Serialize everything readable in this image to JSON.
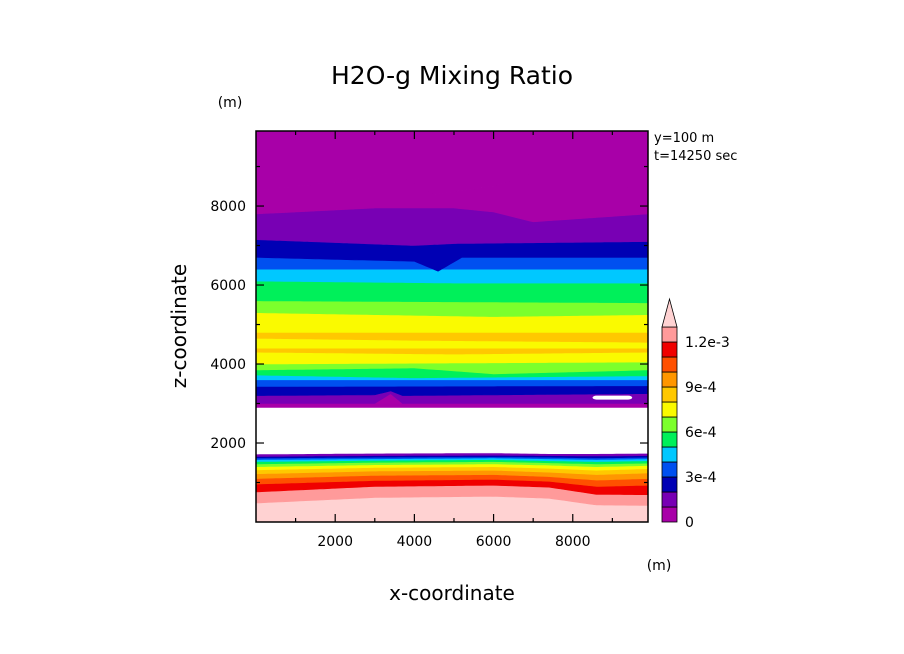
{
  "chart_data": {
    "type": "heatmap",
    "title": "H2O-g Mixing Ratio",
    "xlabel": "x-coordinate",
    "ylabel": "z-coordinate",
    "x_unit": "(m)",
    "y_unit": "(m)",
    "annotation_lines": [
      "y=100 m",
      "t=14250 sec"
    ],
    "xlim": [
      0,
      9900
    ],
    "ylim": [
      0,
      9900
    ],
    "xticks": [
      2000,
      4000,
      6000,
      8000
    ],
    "yticks": [
      2000,
      4000,
      6000,
      8000
    ],
    "xtick_labels": [
      "2000",
      "4000",
      "6000",
      "8000"
    ],
    "ytick_labels": [
      "2000",
      "4000",
      "6000",
      "8000"
    ],
    "colorbar": {
      "min": 0,
      "max": 0.0013,
      "step": 0.0001,
      "extend": "max",
      "colors": [
        "#a800a8",
        "#7800b4",
        "#0000b4",
        "#0050f0",
        "#00c8ff",
        "#00f05a",
        "#7cff2c",
        "#fafa00",
        "#ffc800",
        "#ff9600",
        "#ff5000",
        "#f00000",
        "#ff9a9a",
        "#ffd2d2"
      ],
      "extend_color": "#ffd2d2",
      "tick_values": [
        0,
        0.0003,
        0.0006,
        0.0009,
        0.0012
      ],
      "tick_labels": [
        "0",
        "3e-4",
        "6e-4",
        "9e-4",
        "1.2e-3"
      ]
    },
    "layers": [
      {
        "z_bottom": 0,
        "level_index": 13,
        "z_top_profile": [
          [
            0,
            480
          ],
          [
            3000,
            620
          ],
          [
            6000,
            650
          ],
          [
            7400,
            600
          ],
          [
            8600,
            430
          ],
          [
            9900,
            420
          ]
        ]
      },
      {
        "level_index": 12,
        "z_top_profile": [
          [
            0,
            760
          ],
          [
            3000,
            900
          ],
          [
            6000,
            930
          ],
          [
            7400,
            880
          ],
          [
            8600,
            700
          ],
          [
            9900,
            690
          ]
        ]
      },
      {
        "level_index": 11,
        "z_top_profile": [
          [
            0,
            960
          ],
          [
            3000,
            1050
          ],
          [
            6000,
            1080
          ],
          [
            7400,
            1030
          ],
          [
            8600,
            900
          ],
          [
            9900,
            930
          ]
        ]
      },
      {
        "level_index": 10,
        "z_top_profile": [
          [
            0,
            1100
          ],
          [
            3000,
            1180
          ],
          [
            6000,
            1200
          ],
          [
            7400,
            1150
          ],
          [
            8600,
            1060
          ],
          [
            9900,
            1100
          ]
        ]
      },
      {
        "level_index": 9,
        "z_top_profile": [
          [
            0,
            1220
          ],
          [
            3000,
            1290
          ],
          [
            6000,
            1310
          ],
          [
            7400,
            1260
          ],
          [
            8600,
            1200
          ],
          [
            9900,
            1240
          ]
        ]
      },
      {
        "level_index": 8,
        "z_top_profile": [
          [
            0,
            1320
          ],
          [
            3000,
            1380
          ],
          [
            6000,
            1400
          ],
          [
            7400,
            1360
          ],
          [
            8600,
            1310
          ],
          [
            9900,
            1350
          ]
        ]
      },
      {
        "level_index": 7,
        "z_top_profile": [
          [
            0,
            1400
          ],
          [
            3000,
            1450
          ],
          [
            6000,
            1470
          ],
          [
            7400,
            1440
          ],
          [
            8600,
            1400
          ],
          [
            9900,
            1430
          ]
        ]
      },
      {
        "level_index": 6,
        "z_top_profile": [
          [
            0,
            1470
          ],
          [
            3000,
            1510
          ],
          [
            6000,
            1530
          ],
          [
            7400,
            1500
          ],
          [
            8600,
            1470
          ],
          [
            9900,
            1490
          ]
        ]
      },
      {
        "level_index": 5,
        "z_top_profile": [
          [
            0,
            1530
          ],
          [
            3000,
            1560
          ],
          [
            6000,
            1580
          ],
          [
            7400,
            1550
          ],
          [
            8600,
            1530
          ],
          [
            9900,
            1550
          ]
        ]
      },
      {
        "level_index": 4,
        "z_top_profile": [
          [
            0,
            1580
          ],
          [
            3000,
            1600
          ],
          [
            6000,
            1620
          ],
          [
            7400,
            1600
          ],
          [
            8600,
            1580
          ],
          [
            9900,
            1600
          ]
        ]
      },
      {
        "level_index": 3,
        "z_top_profile": [
          [
            0,
            1620
          ],
          [
            3000,
            1640
          ],
          [
            6000,
            1650
          ],
          [
            7400,
            1640
          ],
          [
            8600,
            1620
          ],
          [
            9900,
            1640
          ]
        ]
      },
      {
        "level_index": 2,
        "z_top_profile": [
          [
            0,
            1660
          ],
          [
            3000,
            1680
          ],
          [
            6000,
            1690
          ],
          [
            7400,
            1680
          ],
          [
            8600,
            1670
          ],
          [
            9900,
            1680
          ]
        ]
      },
      {
        "level_index": 1,
        "z_top_profile": [
          [
            0,
            1720
          ],
          [
            3000,
            1740
          ],
          [
            6000,
            1750
          ],
          [
            7400,
            1730
          ],
          [
            8600,
            1730
          ],
          [
            9900,
            1740
          ]
        ]
      },
      {
        "level_index": -1,
        "z_top_profile": [
          [
            0,
            2900
          ],
          [
            9900,
            2900
          ]
        ]
      },
      {
        "level_index": 0,
        "z_top_profile": [
          [
            0,
            3000
          ],
          [
            3000,
            3000
          ],
          [
            3400,
            3250
          ],
          [
            3700,
            3000
          ],
          [
            9900,
            3000
          ]
        ]
      },
      {
        "level_index": 1,
        "z_top_profile": [
          [
            0,
            3200
          ],
          [
            3000,
            3220
          ],
          [
            3400,
            3320
          ],
          [
            3700,
            3200
          ],
          [
            9900,
            3250
          ]
        ]
      },
      {
        "level_index": 2,
        "z_top_profile": [
          [
            0,
            3430
          ],
          [
            9900,
            3450
          ]
        ]
      },
      {
        "level_index": 3,
        "z_top_profile": [
          [
            0,
            3600
          ],
          [
            9900,
            3600
          ]
        ]
      },
      {
        "level_index": 4,
        "z_top_profile": [
          [
            0,
            3720
          ],
          [
            4000,
            3650
          ],
          [
            9900,
            3700
          ]
        ]
      },
      {
        "level_index": 5,
        "z_top_profile": [
          [
            0,
            3850
          ],
          [
            4000,
            3900
          ],
          [
            6000,
            3750
          ],
          [
            9900,
            3850
          ]
        ]
      },
      {
        "level_index": 6,
        "z_top_profile": [
          [
            0,
            4000
          ],
          [
            9900,
            4050
          ]
        ]
      },
      {
        "level_index": 7,
        "z_top_profile": [
          [
            0,
            4300
          ],
          [
            5000,
            4250
          ],
          [
            9900,
            4300
          ]
        ]
      },
      {
        "level_index": 8,
        "z_top_profile": [
          [
            0,
            4400
          ],
          [
            9900,
            4400
          ]
        ]
      },
      {
        "level_index": 7,
        "z_top_profile": [
          [
            0,
            4650
          ],
          [
            4000,
            4600
          ],
          [
            9900,
            4550
          ]
        ]
      },
      {
        "level_index": 8,
        "z_top_profile": [
          [
            0,
            4800
          ],
          [
            9900,
            4800
          ]
        ]
      },
      {
        "level_index": 7,
        "z_top_profile": [
          [
            0,
            5300
          ],
          [
            6000,
            5200
          ],
          [
            9900,
            5250
          ]
        ]
      },
      {
        "level_index": 6,
        "z_top_profile": [
          [
            0,
            5600
          ],
          [
            9900,
            5550
          ]
        ]
      },
      {
        "level_index": 5,
        "z_top_profile": [
          [
            0,
            6100
          ],
          [
            5000,
            6050
          ],
          [
            9900,
            6050
          ]
        ]
      },
      {
        "level_index": 4,
        "z_top_profile": [
          [
            0,
            6400
          ],
          [
            9900,
            6400
          ]
        ]
      },
      {
        "level_index": 3,
        "z_top_profile": [
          [
            0,
            6700
          ],
          [
            4000,
            6600
          ],
          [
            4600,
            6350
          ],
          [
            5200,
            6700
          ],
          [
            9900,
            6700
          ]
        ]
      },
      {
        "level_index": 2,
        "z_top_profile": [
          [
            0,
            7150
          ],
          [
            4000,
            7000
          ],
          [
            5000,
            7050
          ],
          [
            9900,
            7100
          ]
        ]
      },
      {
        "level_index": 1,
        "z_top_profile": [
          [
            0,
            7800
          ],
          [
            3000,
            7950
          ],
          [
            5000,
            7950
          ],
          [
            6000,
            7850
          ],
          [
            7000,
            7600
          ],
          [
            9900,
            7800
          ]
        ]
      },
      {
        "level_index": 0,
        "z_top_profile": [
          [
            0,
            8400
          ],
          [
            2000,
            8600
          ],
          [
            3500,
            8850
          ],
          [
            4500,
            8300
          ],
          [
            6000,
            8500
          ],
          [
            7000,
            8850
          ],
          [
            8800,
            8850
          ],
          [
            9500,
            8400
          ],
          [
            9900,
            8400
          ]
        ]
      },
      {
        "level_index": 0,
        "z_top_profile": [
          [
            0,
            9900
          ],
          [
            9900,
            9900
          ]
        ]
      }
    ],
    "white_pockets": [
      {
        "x": [
          8500,
          9500
        ],
        "z": [
          3100,
          3200
        ]
      }
    ]
  }
}
